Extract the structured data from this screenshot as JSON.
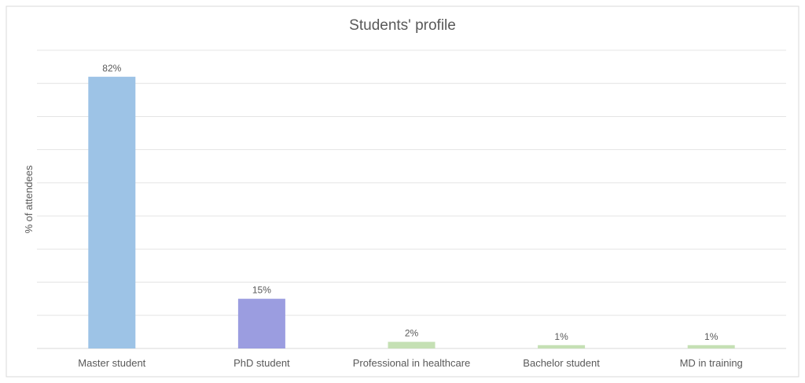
{
  "chart_data": {
    "type": "bar",
    "title": "Students' profile",
    "xlabel": "",
    "ylabel": "% of attendees",
    "ylim": [
      0,
      90
    ],
    "grid": true,
    "y_tick_labels_shown": false,
    "categories": [
      "Master student",
      "PhD student",
      "Professional in healthcare",
      "Bachelor student",
      "MD in training"
    ],
    "values": [
      82,
      15,
      2,
      1,
      1
    ],
    "data_labels": [
      "82%",
      "15%",
      "2%",
      "1%",
      "1%"
    ],
    "colors": [
      "#9DC3E6",
      "#9B9DE0",
      "#C5E0B4",
      "#C5E0B4",
      "#C5E0B4"
    ]
  }
}
